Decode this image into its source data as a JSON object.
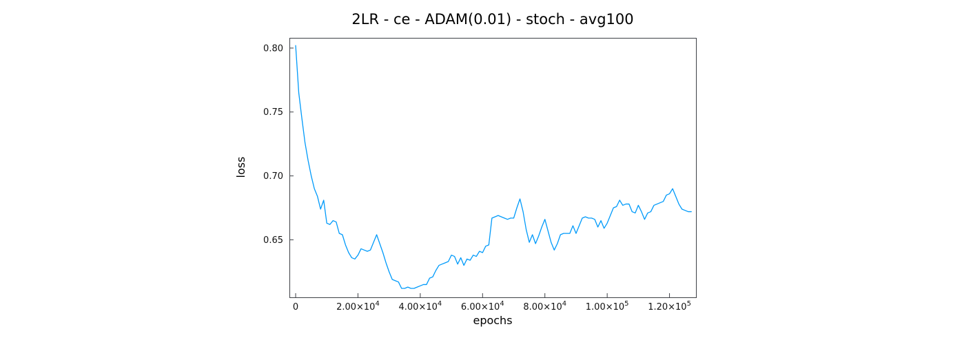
{
  "page": {
    "background_color": "#ffffff"
  },
  "chart_data": {
    "type": "line",
    "title": "2LR - ce - ADAM(0.01) - stoch - avg100",
    "xlabel": "epochs",
    "ylabel": "loss",
    "xlim": [
      -2000,
      128500
    ],
    "ylim": [
      0.605,
      0.808
    ],
    "grid": false,
    "legend": "none",
    "axis_color": "#3c3f44",
    "tick_text_color": "#111111",
    "x_ticks": [
      {
        "value": 0,
        "mantissa": "0",
        "exponent": ""
      },
      {
        "value": 20000,
        "mantissa": "2.00×10",
        "exponent": "4"
      },
      {
        "value": 40000,
        "mantissa": "4.00×10",
        "exponent": "4"
      },
      {
        "value": 60000,
        "mantissa": "6.00×10",
        "exponent": "4"
      },
      {
        "value": 80000,
        "mantissa": "8.00×10",
        "exponent": "4"
      },
      {
        "value": 100000,
        "mantissa": "1.00×10",
        "exponent": "5"
      },
      {
        "value": 120000,
        "mantissa": "1.20×10",
        "exponent": "5"
      }
    ],
    "y_ticks": [
      {
        "value": 0.65,
        "label": "0.65"
      },
      {
        "value": 0.7,
        "label": "0.70"
      },
      {
        "value": 0.75,
        "label": "0.75"
      },
      {
        "value": 0.8,
        "label": "0.80"
      }
    ],
    "series": [
      {
        "name": "loss",
        "color": "#009AFA",
        "x_start": 0,
        "x_step": 1000,
        "values": [
          0.802,
          0.765,
          0.745,
          0.726,
          0.712,
          0.7,
          0.69,
          0.684,
          0.674,
          0.681,
          0.663,
          0.662,
          0.665,
          0.664,
          0.655,
          0.654,
          0.646,
          0.64,
          0.636,
          0.635,
          0.638,
          0.643,
          0.642,
          0.641,
          0.642,
          0.648,
          0.654,
          0.647,
          0.64,
          0.632,
          0.625,
          0.619,
          0.618,
          0.617,
          0.612,
          0.612,
          0.613,
          0.612,
          0.612,
          0.613,
          0.614,
          0.615,
          0.615,
          0.62,
          0.621,
          0.626,
          0.63,
          0.631,
          0.632,
          0.633,
          0.638,
          0.637,
          0.631,
          0.636,
          0.63,
          0.635,
          0.634,
          0.638,
          0.637,
          0.641,
          0.64,
          0.645,
          0.646,
          0.667,
          0.668,
          0.669,
          0.668,
          0.667,
          0.666,
          0.667,
          0.667,
          0.675,
          0.682,
          0.672,
          0.658,
          0.648,
          0.654,
          0.647,
          0.653,
          0.66,
          0.666,
          0.657,
          0.648,
          0.642,
          0.647,
          0.654,
          0.655,
          0.655,
          0.655,
          0.661,
          0.655,
          0.661,
          0.667,
          0.668,
          0.667,
          0.667,
          0.666,
          0.66,
          0.665,
          0.659,
          0.663,
          0.669,
          0.675,
          0.676,
          0.681,
          0.677,
          0.678,
          0.678,
          0.672,
          0.671,
          0.677,
          0.672,
          0.666,
          0.671,
          0.672,
          0.677,
          0.678,
          0.679,
          0.68,
          0.685,
          0.686,
          0.69,
          0.684,
          0.678,
          0.674,
          0.673,
          0.672,
          0.672
        ]
      }
    ]
  }
}
